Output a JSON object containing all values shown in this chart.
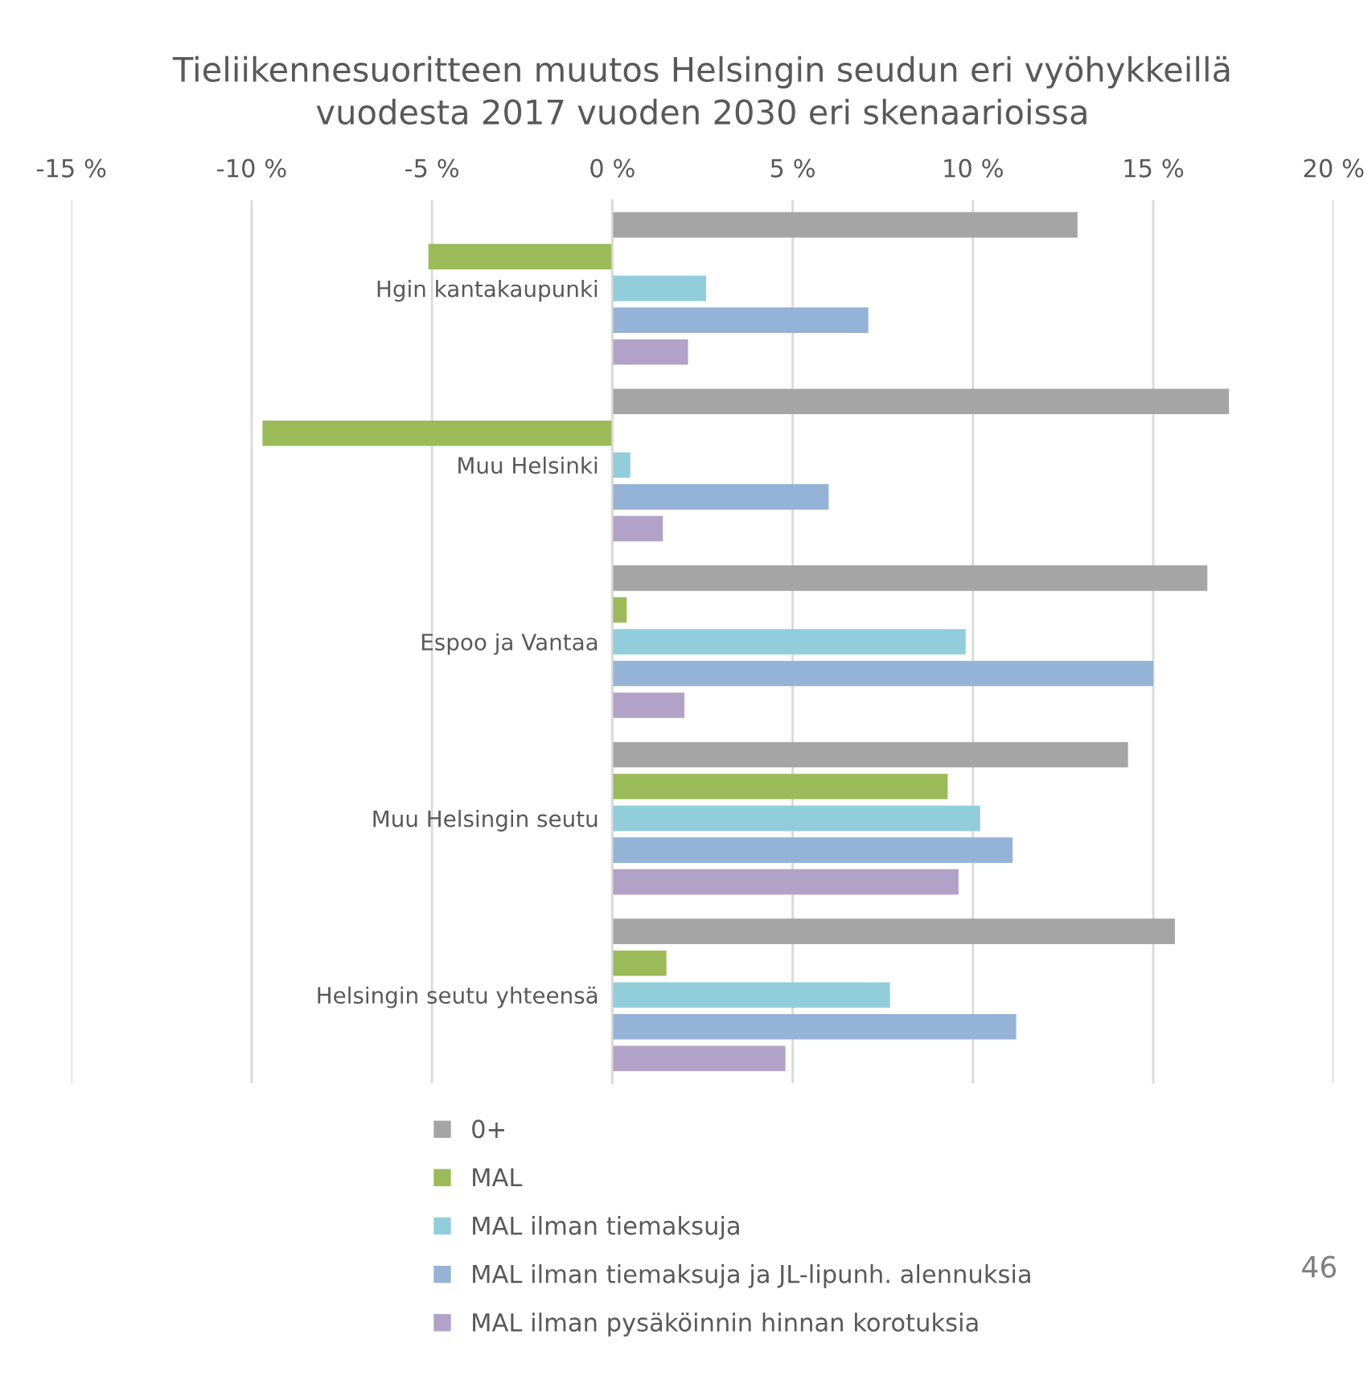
{
  "chart_data": {
    "type": "bar",
    "orientation": "horizontal",
    "title": "Tieliikennesuoritteen muutos Helsingin seudun eri vyöhykkeillä\nvuodesta 2017 vuoden 2030 eri skenaarioissa",
    "categories": [
      "Hgin kantakaupunki",
      "Muu Helsinki",
      "Espoo ja Vantaa",
      "Muu Helsingin seutu",
      "Helsingin seutu yhteensä"
    ],
    "series": [
      {
        "name": "0+",
        "color": "#a5a5a5",
        "values": [
          12.9,
          17.1,
          16.5,
          14.3,
          15.6
        ]
      },
      {
        "name": "MAL",
        "color": "#9bbb59",
        "values": [
          -5.1,
          -9.7,
          0.4,
          9.3,
          1.5
        ]
      },
      {
        "name": "MAL ilman tiemaksuja",
        "color": "#92cddc",
        "values": [
          2.6,
          0.5,
          9.8,
          10.2,
          7.7
        ]
      },
      {
        "name": "MAL ilman tiemaksuja ja JL-lipunh. alennuksia",
        "color": "#95b3d7",
        "values": [
          7.1,
          6.0,
          15.0,
          11.1,
          11.2
        ]
      },
      {
        "name": "MAL ilman pysäköinnin hinnan korotuksia",
        "color": "#b3a2c7",
        "values": [
          2.1,
          1.4,
          2.0,
          9.6,
          4.8
        ]
      }
    ],
    "xlim": [
      -15,
      20
    ],
    "xticks": [
      {
        "value": -15,
        "label": "-15 %"
      },
      {
        "value": -10,
        "label": "-10 %"
      },
      {
        "value": -5,
        "label": "-5 %"
      },
      {
        "value": 0,
        "label": "0 %"
      },
      {
        "value": 5,
        "label": "5 %"
      },
      {
        "value": 10,
        "label": "10 %"
      },
      {
        "value": 15,
        "label": "15 %"
      },
      {
        "value": 20,
        "label": "20 %"
      }
    ],
    "grid": "x",
    "legend": "bottom",
    "annotations": [
      "46"
    ]
  }
}
